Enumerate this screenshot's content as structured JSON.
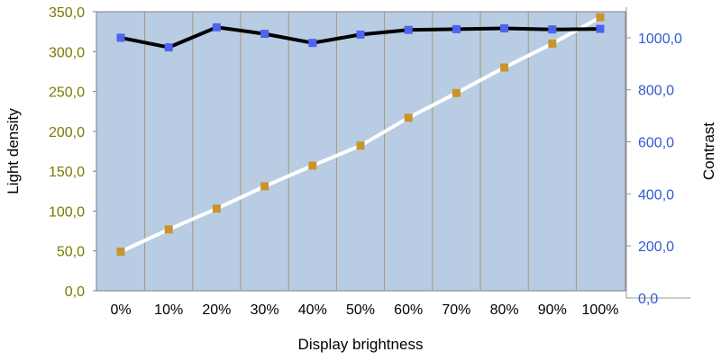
{
  "chart_data": {
    "type": "line",
    "title": "",
    "xlabel": "Display brightness",
    "ylabel_left": "Light density",
    "ylabel_right": "Contrast",
    "categories": [
      "0%",
      "10%",
      "20%",
      "30%",
      "40%",
      "50%",
      "60%",
      "70%",
      "80%",
      "90%",
      "100%"
    ],
    "y_left": {
      "lim": [
        0,
        350
      ],
      "ticks": [
        0,
        50,
        100,
        150,
        200,
        250,
        300,
        350
      ],
      "tick_labels": [
        "0,0",
        "50,0",
        "100,0",
        "150,0",
        "200,0",
        "250,0",
        "300,0",
        "350,0"
      ],
      "tick_color": "#7a7a00"
    },
    "y_right": {
      "lim": [
        0,
        1100
      ],
      "ticks": [
        0,
        200,
        400,
        600,
        800,
        1000
      ],
      "tick_labels": [
        "0,0",
        "200,0",
        "400,0",
        "600,0",
        "800,0",
        "1000,0"
      ],
      "tick_color": "#2f5bd3"
    },
    "series": [
      {
        "axis": "left",
        "line_color": "#ffffff",
        "marker_color": "#c8952a",
        "values": [
          49,
          77,
          103,
          131,
          157,
          182,
          217,
          248,
          280,
          310,
          343
        ]
      },
      {
        "axis": "right",
        "line_color": "#000000",
        "marker_color": "#4f64ee",
        "values": [
          1000,
          963,
          1040,
          1015,
          980,
          1012,
          1030,
          1033,
          1036,
          1032,
          1034
        ]
      }
    ],
    "grid": {
      "vertical": true,
      "horizontal": false
    },
    "plot_background": "#b8cce4",
    "grid_color": "#a89a6a",
    "legend": "none"
  }
}
